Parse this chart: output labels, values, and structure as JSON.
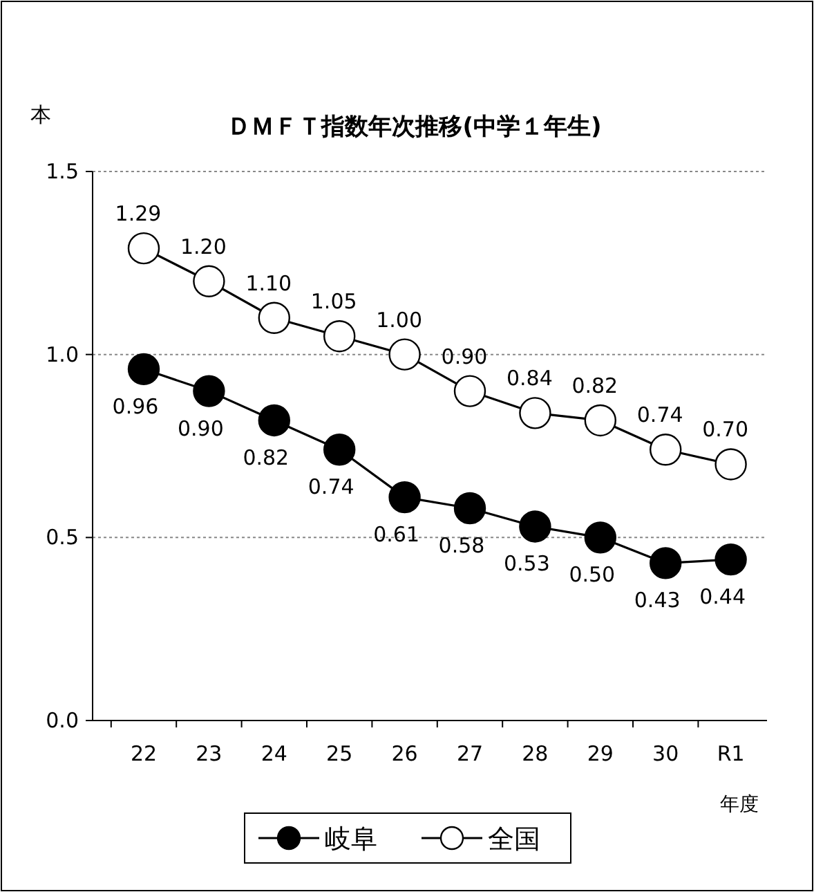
{
  "chart_data": {
    "type": "line",
    "title": "ＤＭＦＴ指数年次推移(中学１年生)",
    "ylabel": "本",
    "xlabel": "年度",
    "categories": [
      "22",
      "23",
      "24",
      "25",
      "26",
      "27",
      "28",
      "29",
      "30",
      "R1"
    ],
    "series": [
      {
        "name": "岐阜",
        "color": "#000000",
        "values": [
          0.96,
          0.9,
          0.82,
          0.74,
          0.61,
          0.58,
          0.53,
          0.5,
          0.43,
          0.44
        ],
        "value_labels": [
          "0.96",
          "0.90",
          "0.82",
          "0.74",
          "0.61",
          "0.58",
          "0.53",
          "0.50",
          "0.43",
          "0.44"
        ]
      },
      {
        "name": "全国",
        "color": "#ffffff",
        "values": [
          1.29,
          1.2,
          1.1,
          1.05,
          1.0,
          0.9,
          0.84,
          0.82,
          0.74,
          0.7
        ],
        "value_labels": [
          "1.29",
          "1.20",
          "1.10",
          "1.05",
          "1.00",
          "0.90",
          "0.84",
          "0.82",
          "0.74",
          "0.70"
        ]
      }
    ],
    "ylim": [
      0,
      1.5
    ],
    "yticks": [
      {
        "value": 0,
        "label": "0.0"
      },
      0.5,
      {
        "value": 1,
        "label": "1.0"
      },
      1.5
    ],
    "grid": "y",
    "legend": "bottom",
    "marker": "circle",
    "line_style": "solid"
  }
}
